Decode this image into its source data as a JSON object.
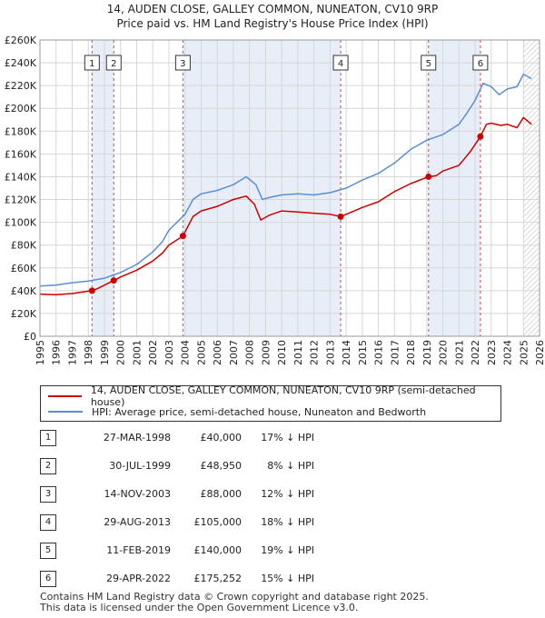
{
  "chart_data": {
    "type": "line",
    "title": "14, AUDEN CLOSE, GALLEY COMMON, NUNEATON, CV10 9RP",
    "subtitle": "Price paid vs. HM Land Registry's House Price Index (HPI)",
    "xlim": [
      1995,
      2026
    ],
    "ylim": [
      0,
      260000
    ],
    "x_ticks": [
      "1995",
      "1996",
      "1997",
      "1998",
      "1999",
      "2000",
      "2001",
      "2002",
      "2003",
      "2004",
      "2005",
      "2006",
      "2007",
      "2008",
      "2009",
      "2010",
      "2011",
      "2012",
      "2013",
      "2014",
      "2015",
      "2016",
      "2017",
      "2018",
      "2019",
      "2020",
      "2021",
      "2022",
      "2023",
      "2024",
      "2025",
      "2026"
    ],
    "y_ticks": [
      "£0",
      "£20K",
      "£40K",
      "£60K",
      "£80K",
      "£100K",
      "£120K",
      "£140K",
      "£160K",
      "£180K",
      "£200K",
      "£220K",
      "£240K",
      "£260K"
    ],
    "grid": true,
    "colors": {
      "property": "#cc0000",
      "hpi": "#5b8fd0",
      "shade": "#e8eef8",
      "marker_line": "#dd4444"
    },
    "series": [
      {
        "name": "14, AUDEN CLOSE, GALLEY COMMON, NUNEATON, CV10 9RP (semi-detached house)",
        "x": [
          1995,
          1996,
          1997,
          1998.23,
          1998.6,
          1999.58,
          2000,
          2001,
          2002,
          2002.6,
          2003,
          2003.87,
          2004.5,
          2005,
          2006,
          2007,
          2007.8,
          2008.3,
          2008.7,
          2009.2,
          2010,
          2011,
          2012,
          2013,
          2013.66,
          2014.5,
          2015,
          2016,
          2017,
          2018,
          2019.11,
          2019.6,
          2020,
          2021,
          2021.7,
          2022.33,
          2022.7,
          2023,
          2023.6,
          2024,
          2024.6,
          2025,
          2025.5
        ],
        "y": [
          37000,
          36500,
          37500,
          40000,
          42000,
          48950,
          52000,
          58000,
          66000,
          73000,
          80000,
          88000,
          105000,
          110000,
          114000,
          120000,
          123000,
          116000,
          102000,
          106000,
          110000,
          109000,
          108000,
          107000,
          105000,
          110000,
          113000,
          118000,
          127000,
          134000,
          140000,
          141000,
          145000,
          150000,
          162000,
          175252,
          186000,
          187000,
          185000,
          186000,
          183000,
          192000,
          186000
        ]
      },
      {
        "name": "HPI: Average price, semi-detached house, Nuneaton and Bedworth",
        "x": [
          1995,
          1996,
          1997,
          1998,
          1999,
          2000,
          2001,
          2002,
          2002.6,
          2003,
          2004,
          2004.5,
          2005,
          2006,
          2007,
          2007.8,
          2008.4,
          2008.8,
          2009.3,
          2010,
          2011,
          2012,
          2013,
          2014,
          2015,
          2016,
          2017,
          2018,
          2019,
          2020,
          2021,
          2021.5,
          2022,
          2022.5,
          2023,
          2023.5,
          2024,
          2024.6,
          2025,
          2025.5
        ],
        "y": [
          44000,
          45000,
          47000,
          48500,
          51000,
          56000,
          63000,
          74000,
          83000,
          93000,
          107000,
          120000,
          125000,
          128000,
          133000,
          140000,
          133000,
          120000,
          122000,
          124000,
          125000,
          124000,
          126000,
          130000,
          137000,
          143000,
          152000,
          164000,
          172000,
          177000,
          186000,
          196000,
          207000,
          222000,
          219000,
          212000,
          217000,
          219000,
          230000,
          226000
        ]
      }
    ],
    "sales": [
      {
        "label": "1",
        "x": 1998.23,
        "value": 40000
      },
      {
        "label": "2",
        "x": 1999.58,
        "value": 48950
      },
      {
        "label": "3",
        "x": 2003.87,
        "value": 88000
      },
      {
        "label": "4",
        "x": 2013.66,
        "value": 105000
      },
      {
        "label": "5",
        "x": 2019.11,
        "value": 140000
      },
      {
        "label": "6",
        "x": 2022.33,
        "value": 175252
      }
    ],
    "shaded_periods": [
      [
        1998.23,
        1999.58
      ],
      [
        2003.87,
        2013.66
      ],
      [
        2019.11,
        2022.33
      ]
    ],
    "hatch_from": 2025.0
  },
  "legend": {
    "property": "14, AUDEN CLOSE, GALLEY COMMON, NUNEATON, CV10 9RP (semi-detached house)",
    "hpi": "HPI: Average price, semi-detached house, Nuneaton and Bedworth"
  },
  "transactions": [
    {
      "num": "1",
      "date": "27-MAR-1998",
      "price": "£40,000",
      "pct": "17% ↓ HPI"
    },
    {
      "num": "2",
      "date": "30-JUL-1999",
      "price": "£48,950",
      "pct": "8% ↓ HPI"
    },
    {
      "num": "3",
      "date": "14-NOV-2003",
      "price": "£88,000",
      "pct": "12% ↓ HPI"
    },
    {
      "num": "4",
      "date": "29-AUG-2013",
      "price": "£105,000",
      "pct": "18% ↓ HPI"
    },
    {
      "num": "5",
      "date": "11-FEB-2019",
      "price": "£140,000",
      "pct": "19% ↓ HPI"
    },
    {
      "num": "6",
      "date": "29-APR-2022",
      "price": "£175,252",
      "pct": "15% ↓ HPI"
    }
  ],
  "footer": {
    "line1": "Contains HM Land Registry data © Crown copyright and database right 2025.",
    "line2": "This data is licensed under the Open Government Licence v3.0."
  }
}
